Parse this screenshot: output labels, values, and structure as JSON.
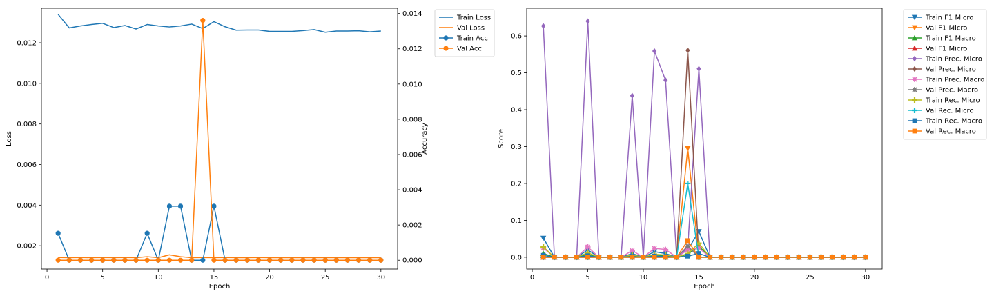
{
  "chart_data": [
    {
      "type": "line",
      "xlabel": "Epoch",
      "ylabel": "Loss",
      "y2label": "Accuracy",
      "xlim": [
        -0.5,
        31.5
      ],
      "ylim": [
        0.00085,
        0.0137
      ],
      "y2lim": [
        -0.0005,
        0.0143
      ],
      "xticks": [
        0,
        5,
        10,
        15,
        20,
        25,
        30
      ],
      "yticks": [
        0.002,
        0.004,
        0.006,
        0.008,
        0.01,
        0.012
      ],
      "y2ticks": [
        0.0,
        0.002,
        0.004,
        0.006,
        0.008,
        0.01,
        0.012,
        0.014
      ],
      "legend_position": "outside-top-right",
      "x": [
        1,
        2,
        3,
        4,
        5,
        6,
        7,
        8,
        9,
        10,
        11,
        12,
        13,
        14,
        15,
        16,
        17,
        18,
        19,
        20,
        21,
        22,
        23,
        24,
        25,
        26,
        27,
        28,
        29,
        30
      ],
      "series": [
        {
          "name": "Train Loss",
          "axis": "left",
          "color": "#1f77b4",
          "marker": "none",
          "values": [
            0.0134,
            0.01273,
            0.01283,
            0.0129,
            0.01296,
            0.01275,
            0.01285,
            0.01268,
            0.0129,
            0.01283,
            0.01278,
            0.01283,
            0.01292,
            0.0127,
            0.01304,
            0.01279,
            0.01262,
            0.01263,
            0.01263,
            0.01256,
            0.01256,
            0.01256,
            0.0126,
            0.01265,
            0.01252,
            0.01258,
            0.01258,
            0.01259,
            0.01254,
            0.01258
          ]
        },
        {
          "name": "Val Loss",
          "axis": "left",
          "color": "#ff7f0e",
          "marker": "none",
          "values": [
            0.00142,
            0.00141,
            0.00142,
            0.00141,
            0.00142,
            0.00141,
            0.00142,
            0.00141,
            0.00146,
            0.00141,
            0.00155,
            0.00146,
            0.00141,
            0.00142,
            0.00141,
            0.00142,
            0.00141,
            0.00141,
            0.00142,
            0.00141,
            0.00141,
            0.00141,
            0.00141,
            0.00141,
            0.00141,
            0.00141,
            0.00141,
            0.00141,
            0.00141,
            0.00141
          ]
        },
        {
          "name": "Train Acc",
          "axis": "right",
          "color": "#1f77b4",
          "marker": "circle",
          "values": [
            0.00153,
            0,
            0,
            0,
            0,
            0,
            0,
            0,
            0.00153,
            0,
            0.00307,
            0.00307,
            0,
            0,
            0.00307,
            0,
            0,
            0,
            0,
            0,
            0,
            0,
            0,
            0,
            0,
            0,
            0,
            0,
            0,
            0
          ]
        },
        {
          "name": "Val Acc",
          "axis": "right",
          "color": "#ff7f0e",
          "marker": "circle",
          "values": [
            0,
            0,
            0,
            0,
            0,
            0,
            0,
            0,
            0,
            0,
            0,
            0,
            0,
            0.01361,
            0,
            0,
            0,
            0,
            0,
            0,
            0,
            0,
            0,
            0,
            0,
            0,
            0,
            0,
            0,
            0
          ]
        }
      ]
    },
    {
      "type": "line",
      "xlabel": "Epoch",
      "ylabel": "Score",
      "xlim": [
        -0.5,
        31.5
      ],
      "ylim": [
        -0.032,
        0.675
      ],
      "xticks": [
        0,
        5,
        10,
        15,
        20,
        25,
        30
      ],
      "yticks": [
        0.0,
        0.1,
        0.2,
        0.3,
        0.4,
        0.5,
        0.6
      ],
      "legend_position": "outside-top-right",
      "x": [
        1,
        2,
        3,
        4,
        5,
        6,
        7,
        8,
        9,
        10,
        11,
        12,
        13,
        14,
        15,
        16,
        17,
        18,
        19,
        20,
        21,
        22,
        23,
        24,
        25,
        26,
        27,
        28,
        29,
        30
      ],
      "series": [
        {
          "name": "Train F1 Micro",
          "color": "#1f77b4",
          "marker": "triangle-down",
          "values": [
            0.052,
            0,
            0,
            0,
            0.02,
            0,
            0,
            0,
            0.01,
            0,
            0.015,
            0.01,
            0,
            0.02,
            0.07,
            0,
            0,
            0,
            0,
            0,
            0,
            0,
            0,
            0,
            0,
            0,
            0,
            0,
            0,
            0
          ]
        },
        {
          "name": "Val F1 Micro",
          "color": "#ff7f0e",
          "marker": "triangle-down",
          "values": [
            0,
            0,
            0,
            0,
            0,
            0,
            0,
            0,
            0,
            0,
            0,
            0,
            0,
            0.295,
            0,
            0,
            0,
            0,
            0,
            0,
            0,
            0,
            0,
            0,
            0,
            0,
            0,
            0,
            0,
            0
          ]
        },
        {
          "name": "Train F1 Macro",
          "color": "#2ca02c",
          "marker": "triangle-up",
          "values": [
            0.01,
            0,
            0,
            0,
            0.008,
            0,
            0,
            0,
            0.004,
            0,
            0.006,
            0.004,
            0,
            0.008,
            0.03,
            0,
            0,
            0,
            0,
            0,
            0,
            0,
            0,
            0,
            0,
            0,
            0,
            0,
            0,
            0
          ]
        },
        {
          "name": "Val F1 Micro",
          "color": "#d62728",
          "marker": "triangle-up",
          "values": [
            0,
            0,
            0,
            0,
            0,
            0,
            0,
            0,
            0,
            0,
            0,
            0,
            0,
            0.03,
            0,
            0,
            0,
            0,
            0,
            0,
            0,
            0,
            0,
            0,
            0,
            0,
            0,
            0,
            0,
            0
          ]
        },
        {
          "name": "Train Prec. Micro",
          "color": "#9467bd",
          "marker": "diamond",
          "values": [
            0.627,
            0,
            0,
            0,
            0.64,
            0,
            0,
            0,
            0.438,
            0,
            0.559,
            0.48,
            0,
            0.025,
            0.511,
            0,
            0,
            0,
            0,
            0,
            0,
            0,
            0,
            0,
            0,
            0,
            0,
            0,
            0,
            0
          ]
        },
        {
          "name": "Val Prec. Micro",
          "color": "#8c564b",
          "marker": "diamond",
          "values": [
            0,
            0,
            0,
            0,
            0,
            0,
            0,
            0,
            0,
            0,
            0,
            0,
            0,
            0.561,
            0,
            0,
            0,
            0,
            0,
            0,
            0,
            0,
            0,
            0,
            0,
            0,
            0,
            0,
            0,
            0
          ]
        },
        {
          "name": "Train Prec. Macro",
          "color": "#e377c2",
          "marker": "star",
          "values": [
            0.025,
            0,
            0,
            0,
            0.028,
            0,
            0,
            0,
            0.018,
            0,
            0.024,
            0.021,
            0,
            0.02,
            0.025,
            0,
            0,
            0,
            0,
            0,
            0,
            0,
            0,
            0,
            0,
            0,
            0,
            0,
            0,
            0
          ]
        },
        {
          "name": "Val Prec. Macro",
          "color": "#7f7f7f",
          "marker": "star",
          "values": [
            0,
            0,
            0,
            0,
            0,
            0,
            0,
            0,
            0,
            0,
            0,
            0,
            0,
            0.03,
            0,
            0,
            0,
            0,
            0,
            0,
            0,
            0,
            0,
            0,
            0,
            0,
            0,
            0,
            0,
            0
          ]
        },
        {
          "name": "Train Rec. Micro",
          "color": "#bcbd22",
          "marker": "plus",
          "values": [
            0.028,
            0,
            0,
            0,
            0.012,
            0,
            0,
            0,
            0.006,
            0,
            0.008,
            0.006,
            0,
            0.01,
            0.038,
            0,
            0,
            0,
            0,
            0,
            0,
            0,
            0,
            0,
            0,
            0,
            0,
            0,
            0,
            0
          ]
        },
        {
          "name": "Val Rec. Micro",
          "color": "#17becf",
          "marker": "plus",
          "values": [
            0,
            0,
            0,
            0,
            0,
            0,
            0,
            0,
            0,
            0,
            0,
            0,
            0,
            0.2,
            0,
            0,
            0,
            0,
            0,
            0,
            0,
            0,
            0,
            0,
            0,
            0,
            0,
            0,
            0,
            0
          ]
        },
        {
          "name": "Train Rec. Macro",
          "color": "#1f77b4",
          "marker": "square",
          "values": [
            0.005,
            0,
            0,
            0,
            0.004,
            0,
            0,
            0,
            0.002,
            0,
            0.003,
            0.002,
            0,
            0.003,
            0.01,
            0,
            0,
            0,
            0,
            0,
            0,
            0,
            0,
            0,
            0,
            0,
            0,
            0,
            0,
            0
          ]
        },
        {
          "name": "Val Rec. Macro",
          "color": "#ff7f0e",
          "marker": "square",
          "values": [
            0,
            0,
            0,
            0,
            0,
            0,
            0,
            0,
            0,
            0,
            0,
            0,
            0,
            0.045,
            0,
            0,
            0,
            0,
            0,
            0,
            0,
            0,
            0,
            0,
            0,
            0,
            0,
            0,
            0,
            0
          ]
        }
      ]
    }
  ]
}
